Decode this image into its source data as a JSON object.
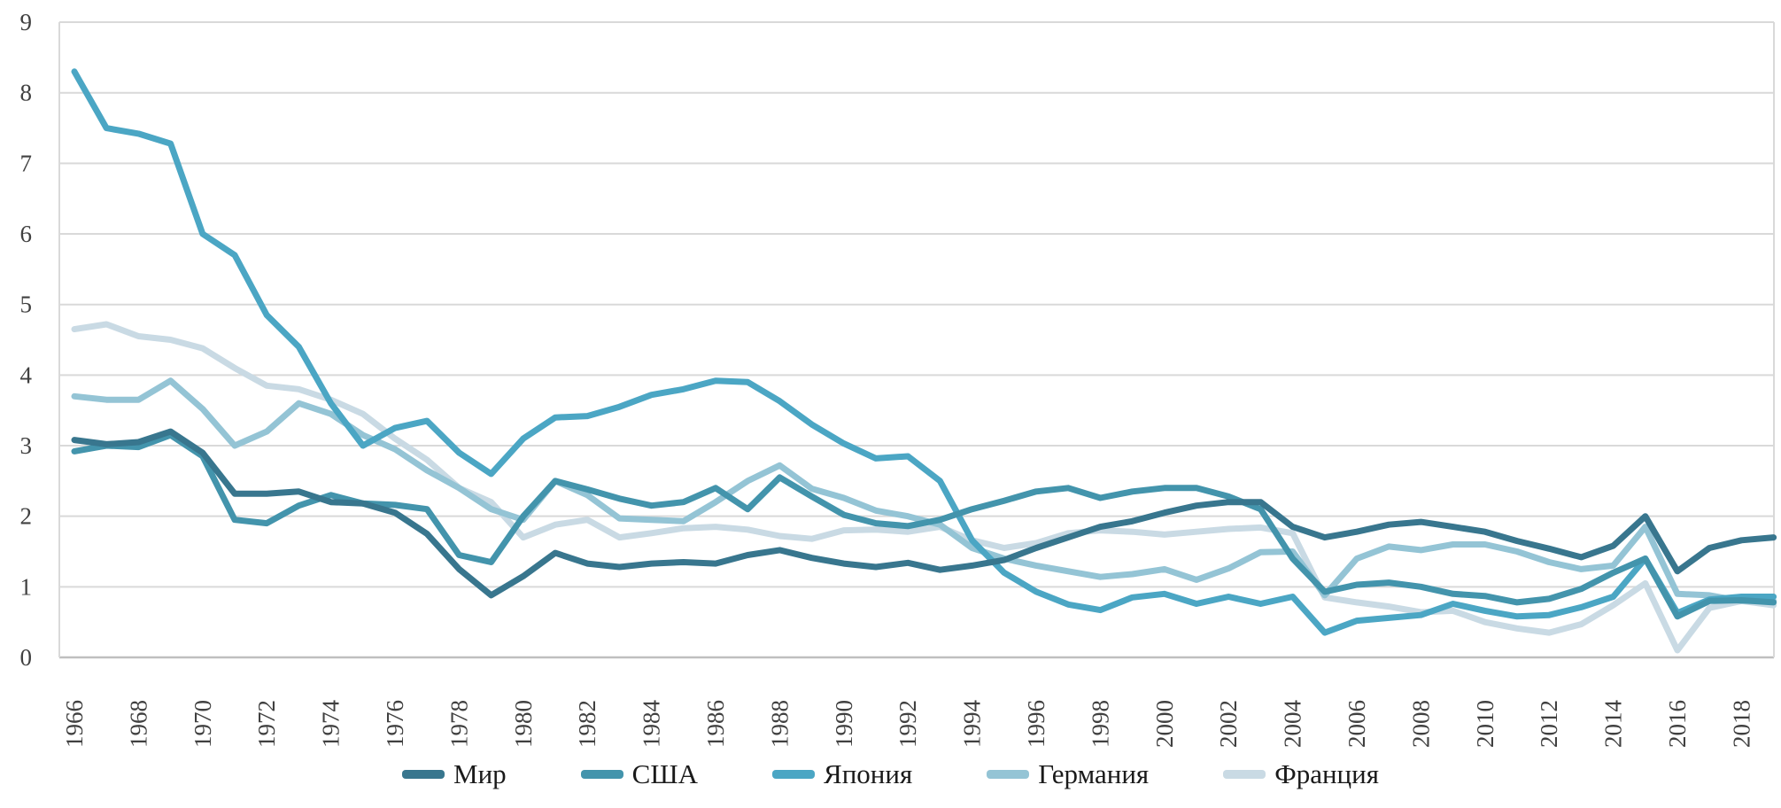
{
  "meta": {
    "background": "#ffffff",
    "grid_color": "#d9d9d9",
    "axis_color": "#bfbfbf",
    "tick_text_color": "#404040",
    "legend_text_color": "#1a1a1a"
  },
  "chart_data": {
    "type": "line",
    "title": "",
    "xlabel": "",
    "ylabel": "",
    "ylim": [
      0,
      9
    ],
    "y_ticks": [
      0,
      1,
      2,
      3,
      4,
      5,
      6,
      7,
      8,
      9
    ],
    "grid": "horizontal",
    "legend_position": "bottom",
    "x": [
      1966,
      1967,
      1968,
      1969,
      1970,
      1971,
      1972,
      1973,
      1974,
      1975,
      1976,
      1977,
      1978,
      1979,
      1980,
      1981,
      1982,
      1983,
      1984,
      1985,
      1986,
      1987,
      1988,
      1989,
      1990,
      1991,
      1992,
      1993,
      1994,
      1995,
      1996,
      1997,
      1998,
      1999,
      2000,
      2001,
      2002,
      2003,
      2004,
      2005,
      2006,
      2007,
      2008,
      2009,
      2010,
      2011,
      2012,
      2013,
      2014,
      2015,
      2016,
      2017,
      2018,
      2019
    ],
    "x_tick_labels": [
      "1966",
      "1968",
      "1970",
      "1972",
      "1974",
      "1976",
      "1978",
      "1980",
      "1982",
      "1984",
      "1986",
      "1988",
      "1990",
      "1992",
      "1994",
      "1996",
      "1998",
      "2000",
      "2002",
      "2004",
      "2006",
      "2008",
      "2010",
      "2012",
      "2014",
      "2016",
      "2018"
    ],
    "series": [
      {
        "name": "Мир",
        "color": "#38768e",
        "values": [
          3.08,
          3.02,
          3.05,
          3.2,
          2.9,
          2.32,
          2.32,
          2.35,
          2.2,
          2.18,
          2.05,
          1.75,
          1.25,
          0.88,
          1.15,
          1.48,
          1.33,
          1.28,
          1.33,
          1.35,
          1.33,
          1.45,
          1.52,
          1.41,
          1.33,
          1.28,
          1.34,
          1.24,
          1.3,
          1.38,
          1.55,
          1.7,
          1.85,
          1.93,
          2.05,
          2.15,
          2.2,
          2.2,
          1.85,
          1.7,
          1.78,
          1.88,
          1.92,
          1.85,
          1.78,
          1.65,
          1.54,
          1.42,
          1.58,
          2.0,
          1.22,
          1.55,
          1.66,
          1.7
        ]
      },
      {
        "name": "США",
        "color": "#4394ac",
        "values": [
          2.92,
          3.0,
          2.98,
          3.15,
          2.85,
          1.95,
          1.9,
          2.15,
          2.3,
          2.18,
          2.16,
          2.1,
          1.45,
          1.35,
          2.0,
          2.5,
          2.38,
          2.25,
          2.15,
          2.2,
          2.4,
          2.1,
          2.55,
          2.28,
          2.02,
          1.9,
          1.86,
          1.95,
          2.1,
          2.22,
          2.35,
          2.4,
          2.26,
          2.35,
          2.4,
          2.4,
          2.28,
          2.1,
          1.4,
          0.93,
          1.03,
          1.06,
          1.0,
          0.9,
          0.87,
          0.78,
          0.83,
          0.97,
          1.2,
          1.4,
          0.58,
          0.8,
          0.81,
          0.78
        ]
      },
      {
        "name": "Япония",
        "color": "#4ba6c4",
        "values": [
          8.3,
          7.5,
          7.42,
          7.28,
          6.0,
          5.7,
          4.85,
          4.4,
          3.6,
          3.0,
          3.25,
          3.35,
          2.9,
          2.6,
          3.1,
          3.4,
          3.42,
          3.55,
          3.72,
          3.8,
          3.92,
          3.9,
          3.63,
          3.3,
          3.03,
          2.82,
          2.85,
          2.5,
          1.66,
          1.2,
          0.93,
          0.75,
          0.67,
          0.85,
          0.9,
          0.76,
          0.86,
          0.76,
          0.86,
          0.35,
          0.52,
          0.56,
          0.6,
          0.76,
          0.66,
          0.58,
          0.6,
          0.71,
          0.86,
          1.4,
          0.63,
          0.82,
          0.86,
          0.86
        ]
      },
      {
        "name": "Германия",
        "color": "#94c4d5",
        "values": [
          3.7,
          3.65,
          3.65,
          3.92,
          3.52,
          3.0,
          3.2,
          3.6,
          3.45,
          3.15,
          2.95,
          2.65,
          2.4,
          2.1,
          1.95,
          2.5,
          2.3,
          1.97,
          1.95,
          1.93,
          2.2,
          2.5,
          2.72,
          2.39,
          2.26,
          2.08,
          2.0,
          1.88,
          1.55,
          1.4,
          1.3,
          1.22,
          1.14,
          1.18,
          1.25,
          1.1,
          1.26,
          1.49,
          1.5,
          0.88,
          1.4,
          1.57,
          1.52,
          1.6,
          1.6,
          1.5,
          1.35,
          1.25,
          1.3,
          1.85,
          0.9,
          0.88,
          0.8,
          0.8
        ]
      },
      {
        "name": "Франция",
        "color": "#c9dae4",
        "values": [
          4.65,
          4.72,
          4.55,
          4.5,
          4.38,
          4.1,
          3.85,
          3.8,
          3.65,
          3.45,
          3.1,
          2.8,
          2.4,
          2.2,
          1.7,
          1.88,
          1.95,
          1.7,
          1.76,
          1.83,
          1.85,
          1.81,
          1.72,
          1.68,
          1.8,
          1.81,
          1.78,
          1.85,
          1.66,
          1.55,
          1.62,
          1.76,
          1.8,
          1.78,
          1.74,
          1.78,
          1.82,
          1.84,
          1.76,
          0.85,
          0.78,
          0.72,
          0.64,
          0.66,
          0.5,
          0.41,
          0.35,
          0.47,
          0.74,
          1.05,
          0.1,
          0.7,
          0.8,
          0.74
        ]
      }
    ]
  }
}
